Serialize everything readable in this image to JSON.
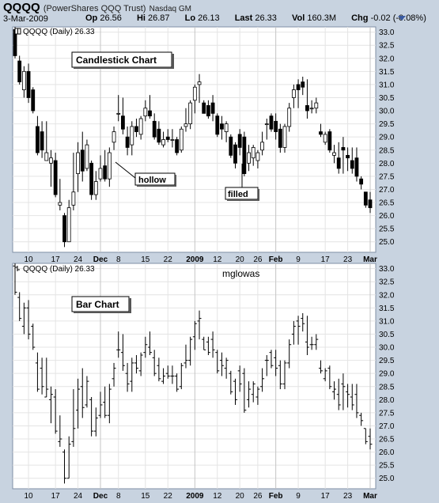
{
  "header": {
    "symbol": "QQQQ",
    "name": "(PowerShares QQQ Trust)",
    "exchange": "Nasdaq GM",
    "date": "3-Mar-2009",
    "open_label": "Op",
    "open": "26.56",
    "high_label": "Hi",
    "high": "26.87",
    "low_label": "Lo",
    "low": "26.13",
    "last_label": "Last",
    "last": "26.33",
    "vol_label": "Vol",
    "vol": "160.3M",
    "chg_label": "Chg",
    "chg": "-0.02 (-0.08%)"
  },
  "panel_top": {
    "legend": "QQQQ (Daily) 26.33",
    "label": "Candlestick Chart",
    "annotation_hollow": "hollow",
    "annotation_filled": "filled"
  },
  "panel_bottom": {
    "legend": "QQQQ (Daily) 26.33",
    "label": "Bar Chart",
    "watermark": "mglowas"
  },
  "chart_data": [
    {
      "type": "candlestick",
      "title": "Candlestick Chart",
      "ylim": [
        24.6,
        33.2
      ],
      "yticks": [
        "25.0",
        "25.5",
        "26.0",
        "26.5",
        "27.0",
        "27.5",
        "28.0",
        "28.5",
        "29.0",
        "29.5",
        "30.0",
        "30.5",
        "31.0",
        "31.5",
        "32.0",
        "32.5",
        "33.0"
      ],
      "xticks": [
        "10",
        "17",
        "24",
        "Dec",
        "8",
        "15",
        "22",
        "2009",
        "12",
        "20",
        "26",
        "Feb",
        "9",
        "17",
        "23",
        "Mar"
      ],
      "ohlc": [
        [
          33.1,
          33.2,
          32.0,
          32.1
        ],
        [
          31.9,
          32.1,
          31.0,
          31.1
        ],
        [
          30.8,
          31.7,
          30.5,
          31.5
        ],
        [
          31.5,
          31.8,
          30.3,
          30.5
        ],
        [
          30.8,
          30.9,
          29.9,
          30.0
        ],
        [
          29.4,
          29.8,
          28.3,
          28.4
        ],
        [
          29.2,
          29.6,
          28.2,
          28.5
        ],
        [
          28.1,
          29.6,
          28.1,
          28.4
        ],
        [
          28.0,
          28.5,
          27.1,
          28.2
        ],
        [
          28.1,
          28.4,
          26.7,
          26.8
        ],
        [
          26.4,
          27.4,
          26.2,
          26.5
        ],
        [
          26.0,
          26.1,
          24.8,
          25.0
        ],
        [
          25.0,
          26.6,
          25.0,
          26.3
        ],
        [
          26.4,
          28.4,
          26.2,
          26.9
        ],
        [
          27.6,
          28.8,
          26.9,
          28.4
        ],
        [
          28.5,
          29.2,
          27.3,
          27.7
        ],
        [
          27.8,
          28.9,
          27.7,
          28.7
        ],
        [
          28.0,
          28.1,
          26.6,
          26.8
        ],
        [
          26.8,
          27.7,
          26.6,
          27.3
        ],
        [
          27.4,
          28.3,
          27.3,
          27.8
        ],
        [
          27.9,
          28.5,
          27.3,
          27.4
        ],
        [
          27.4,
          28.6,
          27.1,
          28.4
        ],
        [
          28.8,
          29.4,
          28.5,
          29.2
        ],
        [
          29.9,
          30.6,
          29.6,
          29.9
        ],
        [
          29.8,
          30.5,
          29.1,
          29.3
        ],
        [
          29.0,
          29.4,
          28.3,
          28.6
        ],
        [
          28.7,
          29.6,
          28.3,
          29.4
        ],
        [
          29.4,
          29.7,
          29.0,
          29.2
        ],
        [
          29.1,
          29.8,
          28.9,
          29.7
        ],
        [
          29.8,
          30.4,
          29.6,
          30.1
        ],
        [
          30.0,
          30.6,
          29.7,
          29.8
        ],
        [
          29.6,
          29.9,
          28.9,
          29.0
        ],
        [
          29.3,
          29.6,
          28.7,
          28.8
        ],
        [
          28.7,
          29.2,
          28.6,
          28.9
        ],
        [
          29.0,
          29.3,
          28.8,
          28.9
        ],
        [
          28.9,
          29.3,
          28.6,
          28.9
        ],
        [
          28.9,
          29.0,
          28.3,
          28.4
        ],
        [
          28.5,
          29.4,
          28.4,
          29.3
        ],
        [
          29.4,
          30.1,
          29.2,
          29.5
        ],
        [
          29.5,
          30.4,
          29.3,
          30.3
        ],
        [
          30.4,
          31.0,
          29.9,
          30.9
        ],
        [
          31.0,
          31.4,
          30.3,
          31.1
        ],
        [
          30.3,
          30.4,
          29.9,
          29.9
        ],
        [
          30.2,
          30.4,
          29.7,
          29.8
        ],
        [
          30.3,
          30.6,
          29.6,
          29.9
        ],
        [
          29.8,
          29.9,
          29.0,
          29.1
        ],
        [
          29.5,
          29.8,
          28.9,
          29.3
        ],
        [
          29.2,
          29.6,
          28.8,
          29.5
        ],
        [
          29.0,
          29.1,
          28.2,
          28.3
        ],
        [
          28.7,
          28.8,
          27.8,
          28.0
        ],
        [
          29.1,
          29.3,
          28.3,
          28.6
        ],
        [
          29.0,
          29.2,
          27.5,
          27.6
        ],
        [
          28.0,
          28.7,
          27.7,
          28.4
        ],
        [
          28.2,
          28.7,
          27.9,
          28.6
        ],
        [
          28.1,
          28.5,
          27.8,
          28.4
        ],
        [
          28.5,
          29.2,
          28.3,
          28.8
        ],
        [
          29.5,
          29.7,
          28.9,
          29.5
        ],
        [
          29.8,
          29.9,
          29.2,
          29.3
        ],
        [
          29.6,
          29.9,
          28.9,
          29.2
        ],
        [
          29.3,
          29.5,
          28.4,
          28.6
        ],
        [
          28.6,
          29.5,
          28.4,
          29.4
        ],
        [
          29.4,
          30.3,
          29.2,
          30.1
        ],
        [
          30.5,
          31.0,
          30.1,
          30.8
        ],
        [
          31.0,
          31.2,
          30.1,
          30.8
        ],
        [
          31.1,
          31.3,
          30.6,
          30.9
        ],
        [
          30.2,
          31.2,
          29.7,
          30.0
        ],
        [
          30.1,
          30.4,
          29.9,
          30.1
        ],
        [
          30.1,
          30.5,
          29.9,
          30.3
        ],
        [
          29.2,
          29.5,
          29.0,
          29.1
        ],
        [
          28.8,
          29.2,
          28.7,
          29.1
        ],
        [
          29.2,
          29.3,
          28.4,
          28.5
        ],
        [
          28.3,
          28.7,
          28.0,
          28.4
        ],
        [
          28.2,
          28.8,
          27.6,
          27.8
        ],
        [
          28.6,
          29.0,
          27.6,
          28.5
        ],
        [
          28.3,
          28.6,
          27.7,
          28.2
        ],
        [
          28.1,
          28.6,
          27.6,
          27.8
        ],
        [
          28.2,
          28.6,
          27.3,
          27.5
        ],
        [
          27.4,
          27.5,
          27.0,
          27.2
        ],
        [
          26.9,
          26.9,
          26.3,
          26.4
        ],
        [
          26.6,
          26.9,
          26.1,
          26.3
        ]
      ]
    },
    {
      "type": "bar",
      "title": "Bar Chart",
      "ylim": [
        24.6,
        33.2
      ],
      "yticks": [
        "25.0",
        "25.5",
        "26.0",
        "26.5",
        "27.0",
        "27.5",
        "28.0",
        "28.5",
        "29.0",
        "29.5",
        "30.0",
        "30.5",
        "31.0",
        "31.5",
        "32.0",
        "32.5",
        "33.0"
      ],
      "xticks": [
        "10",
        "17",
        "24",
        "Dec",
        "8",
        "15",
        "22",
        "2009",
        "12",
        "20",
        "26",
        "Feb",
        "9",
        "17",
        "23",
        "Mar"
      ],
      "ohlc": "same series as candlestick panel"
    }
  ],
  "colors": {
    "background": "#c8d3e0",
    "plot_bg": "#ffffff",
    "grid": "#e4e4e4",
    "price": "#000000",
    "axis_text": "#000000"
  }
}
